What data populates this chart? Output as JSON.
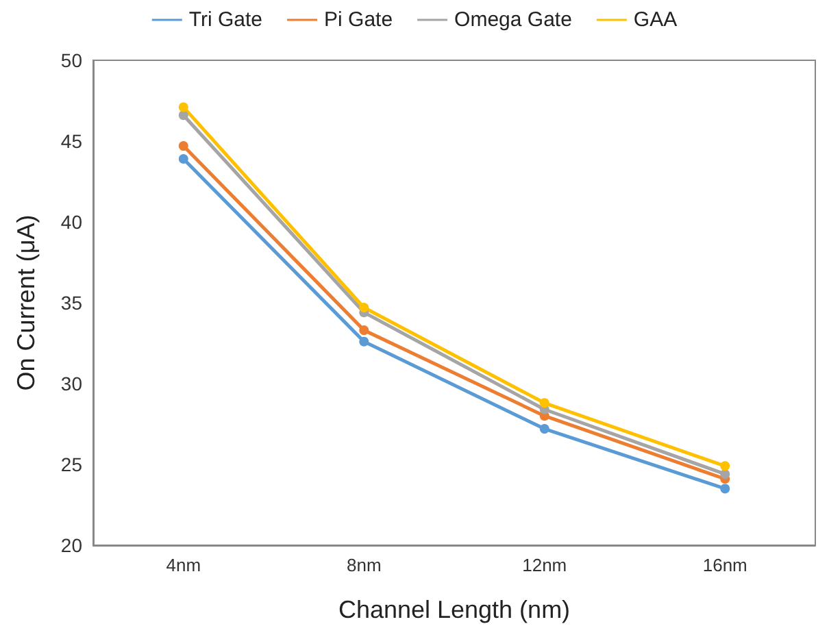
{
  "chart_data": {
    "type": "line",
    "xlabel": "Channel Length (nm)",
    "ylabel": "On Current (μA)",
    "categories": [
      "4nm",
      "8nm",
      "12nm",
      "16nm"
    ],
    "series": [
      {
        "name": "Tri Gate",
        "color": "#5b9bd5",
        "values": [
          43.9,
          32.6,
          27.2,
          23.5
        ]
      },
      {
        "name": "Pi Gate",
        "color": "#ed7d31",
        "values": [
          44.7,
          33.3,
          28.0,
          24.1
        ]
      },
      {
        "name": "Omega Gate",
        "color": "#a5a5a5",
        "values": [
          46.6,
          34.4,
          28.4,
          24.4
        ]
      },
      {
        "name": "GAA",
        "color": "#ffc000",
        "values": [
          47.1,
          34.7,
          28.8,
          24.9
        ]
      }
    ],
    "ylim": [
      20,
      50
    ],
    "yticks": [
      20,
      25,
      30,
      35,
      40,
      45,
      50
    ],
    "grid": false,
    "legend": "top",
    "marker": "circle",
    "line_style": "solid"
  }
}
